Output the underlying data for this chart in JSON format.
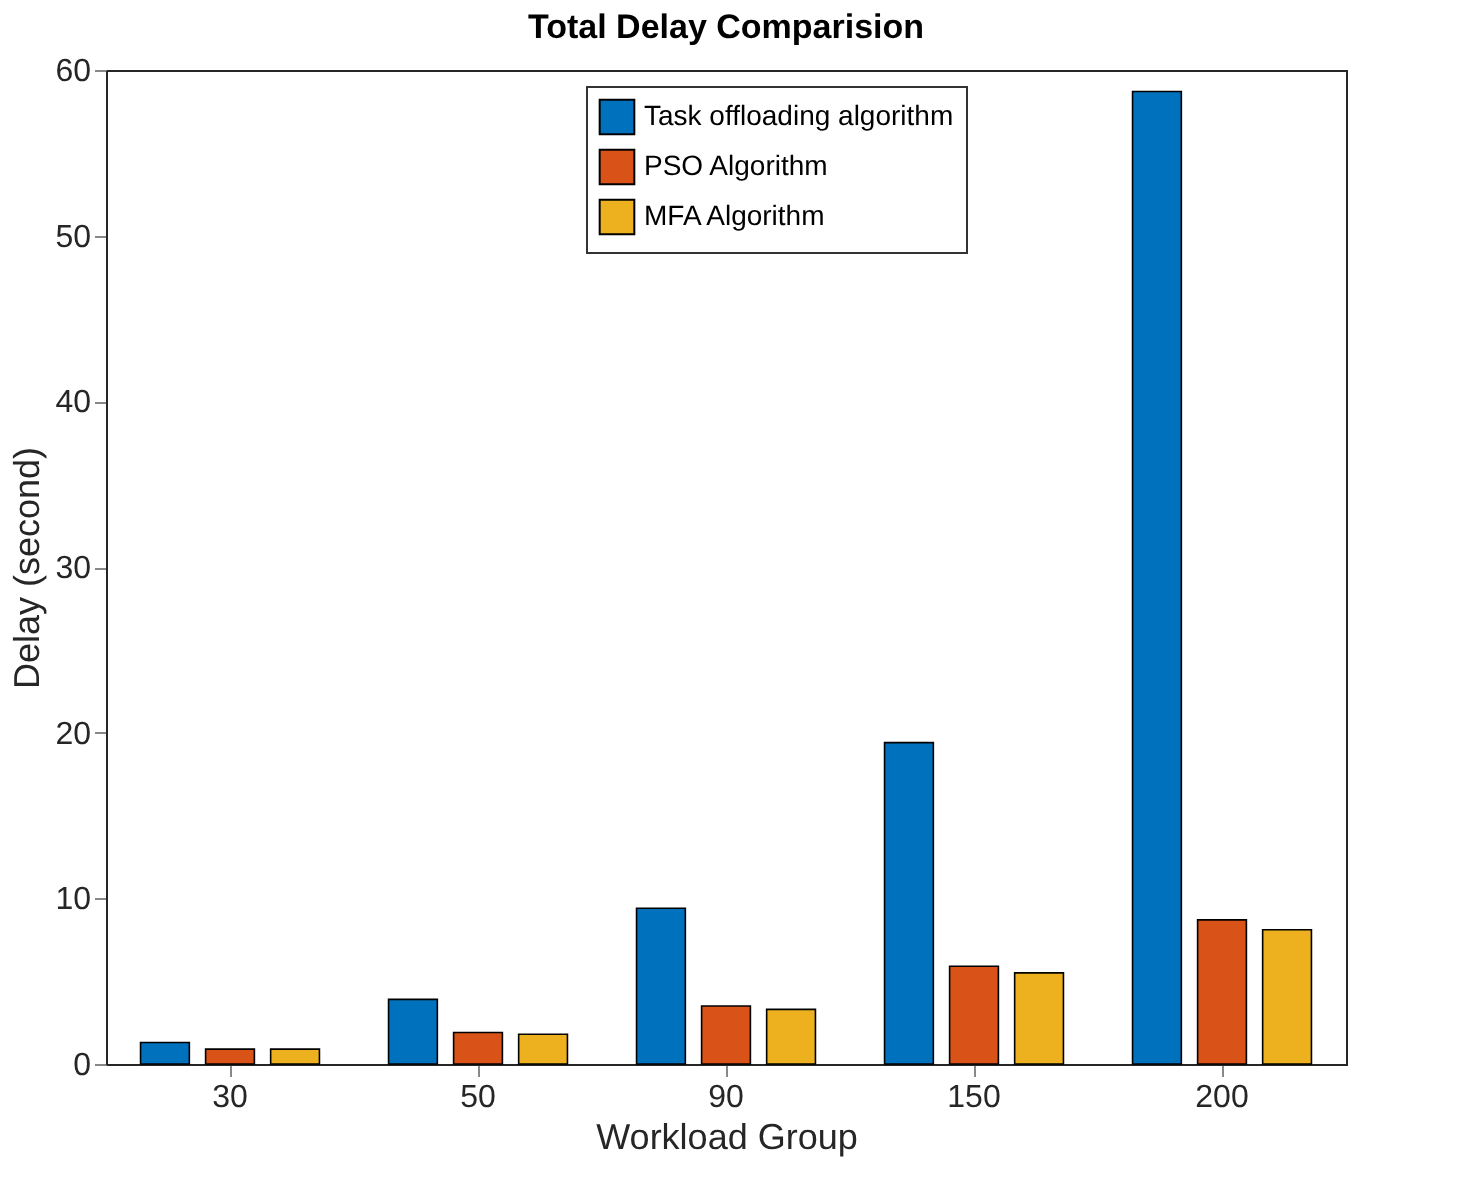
{
  "chart_data": {
    "type": "bar",
    "title": "Total Delay Comparision",
    "xlabel": "Workload Group",
    "ylabel": "Delay (second)",
    "categories": [
      "30",
      "50",
      "90",
      "150",
      "200"
    ],
    "series": [
      {
        "name": "Task offloading algorithm",
        "color": "#0072bd",
        "values": [
          1.3,
          3.9,
          9.4,
          19.4,
          58.7
        ]
      },
      {
        "name": "PSO Algorithm",
        "color": "#d95319",
        "values": [
          0.9,
          1.9,
          3.5,
          5.9,
          8.7
        ]
      },
      {
        "name": "MFA Algorithm",
        "color": "#edb120",
        "values": [
          0.9,
          1.8,
          3.3,
          5.5,
          8.1
        ]
      }
    ],
    "ylim": [
      0,
      60
    ],
    "yticks": [
      0,
      10,
      20,
      30,
      40,
      50,
      60
    ],
    "grid": false,
    "legend": "top"
  }
}
